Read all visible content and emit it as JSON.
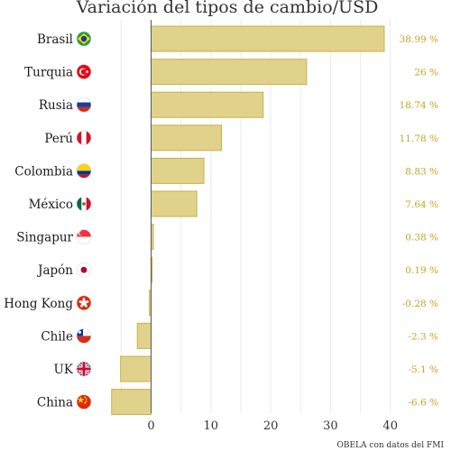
{
  "chart_data": {
    "type": "bar",
    "orientation": "horizontal",
    "title": "Variación del tipos de cambio/USD",
    "caption": "OBELA con datos del FMI",
    "categories": [
      "Brasil",
      "Turquia",
      "Rusia",
      "Perú",
      "Colombia",
      "México",
      "Singapur",
      "Japón",
      "Hong Kong",
      "Chile",
      "UK",
      "China"
    ],
    "values": [
      38.99,
      26,
      18.74,
      11.78,
      8.83,
      7.64,
      0.38,
      0.19,
      -0.28,
      -2.3,
      -5.1,
      -6.6
    ],
    "value_labels": [
      "38.99 %",
      "26 %",
      "18.74 %",
      "11.78 %",
      "8.83 %",
      "7.64 %",
      "0.38 %",
      "0.19 %",
      "-0.28 %",
      "-2.3 %",
      "-5.1 %",
      "-6.6 %"
    ],
    "flags": [
      "brazil-flag-icon",
      "turkey-flag-icon",
      "russia-flag-icon",
      "peru-flag-icon",
      "colombia-flag-icon",
      "mexico-flag-icon",
      "singapore-flag-icon",
      "japan-flag-icon",
      "hong-kong-flag-icon",
      "chile-flag-icon",
      "uk-flag-icon",
      "china-flag-icon"
    ],
    "xticks": [
      0,
      10,
      20,
      30,
      40
    ],
    "xlim": [
      -7,
      41
    ],
    "grid": true,
    "colors": {
      "bar": "#e0d28a",
      "bar_edge": "#c9b04a",
      "label": "#c9a227",
      "zero_line": "#555555",
      "grid": "#ebebeb"
    }
  }
}
